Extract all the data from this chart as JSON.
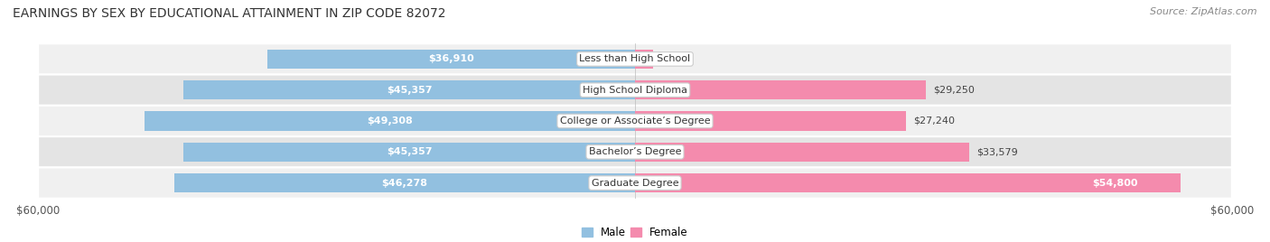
{
  "title": "EARNINGS BY SEX BY EDUCATIONAL ATTAINMENT IN ZIP CODE 82072",
  "source": "Source: ZipAtlas.com",
  "categories": [
    "Less than High School",
    "High School Diploma",
    "College or Associate’s Degree",
    "Bachelor’s Degree",
    "Graduate Degree"
  ],
  "male_values": [
    36910,
    45357,
    49308,
    45357,
    46278
  ],
  "female_values": [
    0,
    29250,
    27240,
    33579,
    54800
  ],
  "male_color": "#92C0E0",
  "female_color": "#F48BAD",
  "male_label": "Male",
  "female_label": "Female",
  "max_value": 60000,
  "xlabel_left": "$60,000",
  "xlabel_right": "$60,000",
  "bg_color": "#ffffff",
  "row_bg_even": "#f2f2f2",
  "row_bg_odd": "#e8e8e8",
  "title_fontsize": 10,
  "source_fontsize": 8,
  "axis_fontsize": 8.5,
  "label_fontsize": 8,
  "bar_height": 0.62,
  "female_inside_threshold": 50000
}
